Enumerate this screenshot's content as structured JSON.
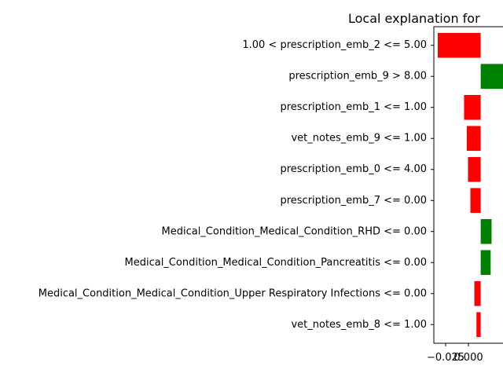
{
  "chart_data": {
    "type": "bar",
    "orientation": "horizontal",
    "title": "Local explanation for",
    "xlabel": "",
    "ylabel": "",
    "xlim": [
      -0.0155,
      0.0105
    ],
    "x_tick_labels": [
      "−0.025",
      "0.000"
    ],
    "grid": false,
    "categories": [
      "1.00 < prescription_emb_2 <= 5.00",
      "prescription_emb_9 > 8.00",
      "prescription_emb_1 <= 1.00",
      "vet_notes_emb_9 <= 1.00",
      "prescription_emb_0 <= 4.00",
      "prescription_emb_7 <= 0.00",
      "Medical_Condition_Medical_Condition_RHD <= 0.00",
      "Medical_Condition_Medical_Condition_Pancreatitis <= 0.00",
      "Medical_Condition_Medical_Condition_Upper Respiratory Infections <= 0.00",
      "vet_notes_emb_8 <= 1.00"
    ],
    "values": [
      -0.0142,
      0.0093,
      -0.0055,
      -0.0046,
      -0.0042,
      -0.0034,
      0.0036,
      0.0033,
      -0.0021,
      -0.0014
    ],
    "colors": {
      "positive": "#008000",
      "negative": "#ff0000"
    }
  }
}
